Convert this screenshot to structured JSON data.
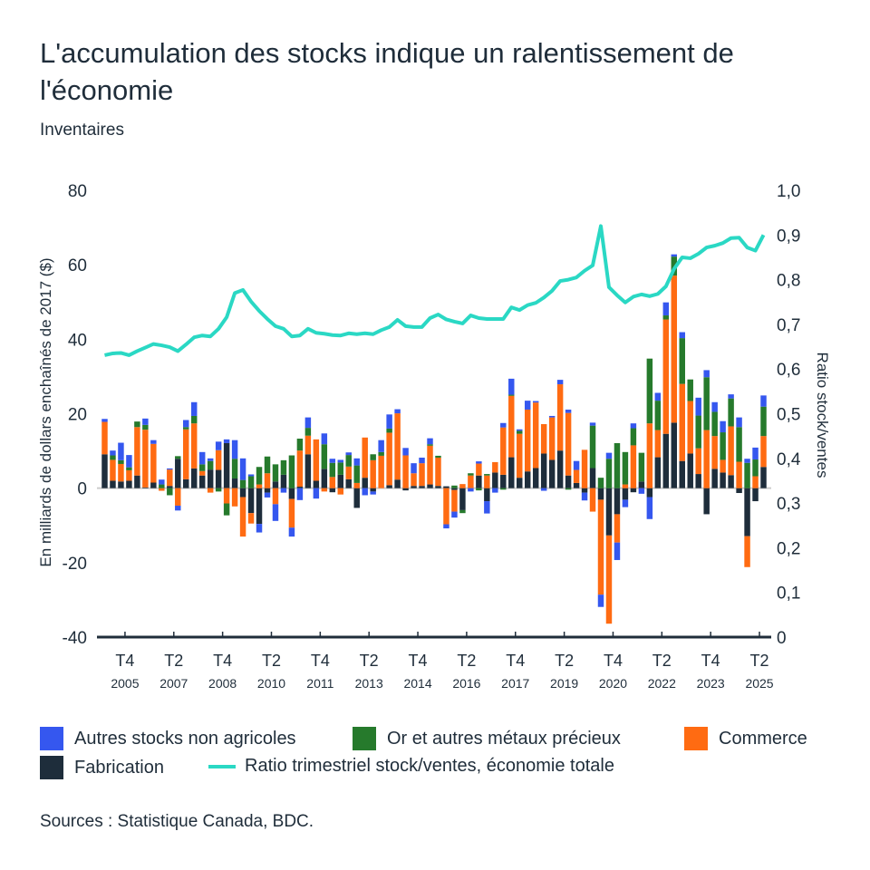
{
  "title": "L'accumulation des stocks indique un ralentissement de l'économie",
  "subtitle": "Inventaires",
  "source": "Sources : Statistique Canada, BDC.",
  "colors": {
    "fabrication": "#1e2d3b",
    "commerce": "#ff6b12",
    "or": "#267a2c",
    "autres": "#3557ef",
    "ratio": "#2ad8c4",
    "axis": "#1f2d3a",
    "zero": "#cccccc"
  },
  "chart_data": {
    "type": "bar",
    "stacked": true,
    "title": "",
    "ylabel": "En milliards de dollars enchaînés de 2017 ($)",
    "y2label": "Ratio stock/ventes",
    "ylim": [
      -40,
      80
    ],
    "y2lim": [
      0,
      1.0
    ],
    "yticks": [
      "80",
      "60",
      "40",
      "20",
      "0",
      "-20",
      "-40"
    ],
    "y2ticks": [
      "1,0",
      "0,9",
      "0,8",
      "0,7",
      "0,6",
      "0,5",
      "0,4",
      "0,3",
      "0,2",
      "0,1",
      "0"
    ],
    "first_quarter": "2005 T1",
    "last_quarter": "2025 T2",
    "xticks": [
      {
        "index": 3,
        "q": "T4",
        "year": "2005"
      },
      {
        "index": 9,
        "q": "T2",
        "year": "2007"
      },
      {
        "index": 15,
        "q": "T4",
        "year": "2008"
      },
      {
        "index": 21,
        "q": "T2",
        "year": "2010"
      },
      {
        "index": 27,
        "q": "T4",
        "year": "2011"
      },
      {
        "index": 33,
        "q": "T2",
        "year": "2013"
      },
      {
        "index": 39,
        "q": "T4",
        "year": "2014"
      },
      {
        "index": 45,
        "q": "T2",
        "year": "2016"
      },
      {
        "index": 51,
        "q": "T4",
        "year": "2017"
      },
      {
        "index": 57,
        "q": "T2",
        "year": "2019"
      },
      {
        "index": 63,
        "q": "T4",
        "year": "2020"
      },
      {
        "index": 69,
        "q": "T2",
        "year": "2022"
      },
      {
        "index": 75,
        "q": "T4",
        "year": "2023"
      },
      {
        "index": 81,
        "q": "T2",
        "year": "2025"
      }
    ],
    "legend_position": "bottom",
    "series": [
      {
        "name": "Fabrication",
        "key": "fabrication",
        "values": [
          9.1,
          2.0,
          1.8,
          2.0,
          3.4,
          0.2,
          1.5,
          0,
          0.6,
          7.9,
          2.4,
          5.3,
          3.4,
          5.0,
          4.9,
          12.1,
          2.6,
          -2.4,
          -6.7,
          -9.6,
          -1.2,
          1.8,
          3.6,
          -2.9,
          0.4,
          9.1,
          2.0,
          5.2,
          -1.1,
          3.6,
          2.4,
          -5.3,
          2.8,
          -0.9,
          0,
          0.8,
          2.3,
          -0.6,
          0.6,
          0.6,
          1.0,
          0.6,
          0.5,
          -0.5,
          -5.9,
          0,
          3.4,
          -3.5,
          4.2,
          3.6,
          8.3,
          2.8,
          4.5,
          5.4,
          9.3,
          7.6,
          10.1,
          3.4,
          1.4,
          -1.2,
          5.4,
          -3.1,
          -12.7,
          -7.0,
          -3.1,
          -1.1,
          1.8,
          -2.4,
          8.3,
          14.6,
          17.6,
          7.3,
          9.3,
          3.8,
          -7.0,
          5.2,
          4.2,
          3.5,
          -1.3,
          -12.9,
          -3.5,
          5.7
        ]
      },
      {
        "name": "Commerce",
        "key": "commerce",
        "values": [
          8.7,
          5.6,
          4.7,
          2.8,
          13.0,
          15.5,
          10.4,
          -0.7,
          4.4,
          -4.7,
          13.4,
          12.1,
          1.2,
          -1.2,
          5.3,
          -4.1,
          -4.9,
          -10.6,
          -2.8,
          1.0,
          4.0,
          -4.3,
          0,
          -7.7,
          9.7,
          5.0,
          11.1,
          -0.9,
          3.0,
          -1.7,
          3.4,
          1.4,
          10.8,
          7.5,
          8.7,
          14.1,
          17.8,
          8.8,
          3.4,
          6.1,
          10.4,
          7.6,
          -9.7,
          -5.8,
          1.1,
          3.4,
          3.2,
          3.4,
          2.8,
          12.7,
          16.5,
          11.8,
          16.6,
          17.6,
          7.9,
          11.4,
          17.8,
          16.8,
          3.5,
          10.3,
          -6.3,
          -25.5,
          -23.7,
          -7.6,
          1.0,
          11.5,
          0,
          17.4,
          7.3,
          30.7,
          39.5,
          20.7,
          14.1,
          6.9,
          15.6,
          8.8,
          3.4,
          13.1,
          7.1,
          -8.3,
          3.2,
          8.3
        ]
      },
      {
        "name": "Or et autres métaux précieux",
        "key": "or",
        "values": [
          0,
          1.2,
          1.0,
          0.8,
          1.5,
          1.3,
          0,
          1.0,
          -1.9,
          0.7,
          0.6,
          2.0,
          1.8,
          2.3,
          -0.9,
          -3.2,
          5.3,
          2.2,
          3.2,
          4.7,
          4.5,
          4.6,
          3.9,
          8.8,
          3.2,
          2.1,
          0,
          6.6,
          3.8,
          3.3,
          3.1,
          4.7,
          0,
          1.6,
          1.0,
          1.1,
          0,
          0,
          0,
          0,
          0.4,
          0.5,
          0,
          0.7,
          -0.8,
          0.6,
          -0.6,
          0.4,
          0,
          -0.4,
          0.3,
          0.8,
          0,
          0,
          0,
          0,
          0,
          -0.4,
          0,
          0,
          11.4,
          2.8,
          7.9,
          12.1,
          8.7,
          4.6,
          7.7,
          17.4,
          7.9,
          1.1,
          5.1,
          12.3,
          5.8,
          8.8,
          14.2,
          6.5,
          7.4,
          7.5,
          9.3,
          6.8,
          4.5,
          7.9
        ]
      },
      {
        "name": "Autres stocks non agricoles",
        "key": "autres",
        "values": [
          0.8,
          1.3,
          4.7,
          3.3,
          0,
          1.7,
          1.0,
          1.3,
          0.3,
          -1.3,
          1.9,
          3.7,
          3.3,
          0.7,
          2.3,
          1.0,
          5.0,
          5.8,
          0.5,
          -2.3,
          -1.3,
          -4.5,
          -1.2,
          -2.4,
          -3.2,
          2.8,
          -2.8,
          2.9,
          1.1,
          0.7,
          0.7,
          1.9,
          -1.9,
          -0.8,
          3.2,
          3.8,
          1.1,
          2.0,
          2.7,
          1.5,
          1.6,
          0,
          -1.1,
          -1.6,
          0,
          -0.9,
          0.6,
          -3.3,
          -1.2,
          1.2,
          4.3,
          0.4,
          2.4,
          0.4,
          -0.7,
          0.4,
          1.2,
          0.9,
          2.4,
          -2.1,
          0.8,
          -3.3,
          1.6,
          -4.7,
          -2.0,
          1.3,
          -1.5,
          -5.9,
          2.1,
          3.5,
          0.6,
          1.6,
          0,
          4.8,
          1.9,
          2.6,
          3.0,
          1.1,
          2.6,
          1.1,
          3.2,
          3.0
        ]
      }
    ],
    "line": {
      "name": "Ratio trimestriel stock/ventes, économie totale",
      "axis": "right",
      "values": [
        0.631,
        0.635,
        0.636,
        0.631,
        0.64,
        0.648,
        0.656,
        0.653,
        0.649,
        0.64,
        0.655,
        0.671,
        0.675,
        0.673,
        0.69,
        0.716,
        0.77,
        0.777,
        0.751,
        0.73,
        0.712,
        0.696,
        0.69,
        0.673,
        0.675,
        0.69,
        0.681,
        0.679,
        0.676,
        0.675,
        0.68,
        0.678,
        0.68,
        0.678,
        0.687,
        0.694,
        0.71,
        0.696,
        0.694,
        0.694,
        0.714,
        0.722,
        0.711,
        0.706,
        0.702,
        0.72,
        0.714,
        0.712,
        0.712,
        0.712,
        0.738,
        0.732,
        0.743,
        0.748,
        0.76,
        0.775,
        0.797,
        0.8,
        0.805,
        0.82,
        0.832,
        0.92,
        0.783,
        0.765,
        0.749,
        0.762,
        0.767,
        0.763,
        0.768,
        0.785,
        0.824,
        0.85,
        0.848,
        0.858,
        0.872,
        0.876,
        0.882,
        0.893,
        0.894,
        0.872,
        0.865,
        0.9
      ]
    }
  },
  "legend": [
    {
      "label": "Autres stocks non agricoles",
      "key": "autres"
    },
    {
      "label": "Or et autres métaux précieux",
      "key": "or"
    },
    {
      "label": "Commerce",
      "key": "commerce"
    },
    {
      "label": "Fabrication",
      "key": "fabrication"
    },
    {
      "label": "Ratio trimestriel stock/ventes, économie totale",
      "key": "ratio"
    }
  ]
}
